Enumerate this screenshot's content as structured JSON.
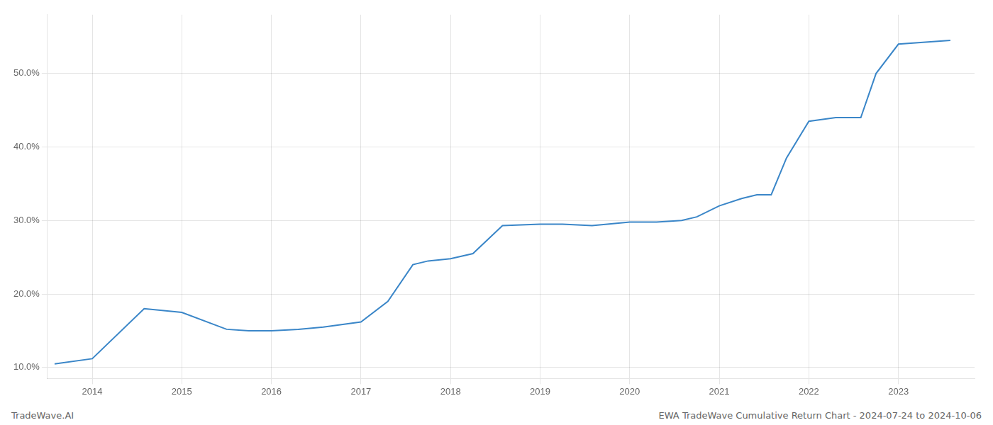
{
  "chart_data": {
    "type": "line",
    "x": [
      2013.58,
      2014.0,
      2014.58,
      2015.0,
      2015.5,
      2015.75,
      2016.0,
      2016.3,
      2016.58,
      2017.0,
      2017.3,
      2017.58,
      2017.75,
      2018.0,
      2018.25,
      2018.58,
      2019.0,
      2019.25,
      2019.58,
      2019.75,
      2020.0,
      2020.3,
      2020.58,
      2020.75,
      2021.0,
      2021.25,
      2021.42,
      2021.58,
      2021.75,
      2022.0,
      2022.3,
      2022.58,
      2022.75,
      2023.0,
      2023.58
    ],
    "values": [
      10.5,
      11.2,
      18.0,
      17.5,
      15.2,
      15.0,
      15.0,
      15.2,
      15.5,
      16.2,
      19.0,
      24.0,
      24.5,
      24.8,
      25.5,
      29.3,
      29.5,
      29.5,
      29.3,
      29.5,
      29.8,
      29.8,
      30.0,
      30.5,
      32.0,
      33.0,
      33.5,
      33.5,
      38.5,
      43.5,
      44.0,
      44.0,
      50.0,
      54.0,
      54.5
    ],
    "color": "#3a86c8",
    "xlim": [
      2013.5,
      2023.85
    ],
    "xticks": [
      2014,
      2015,
      2016,
      2017,
      2018,
      2019,
      2020,
      2021,
      2022,
      2023
    ],
    "ylim": [
      8.5,
      58.0
    ],
    "yticks": [
      {
        "value": 10.0,
        "label": "10.0%"
      },
      {
        "value": 20.0,
        "label": "20.0%"
      },
      {
        "value": 30.0,
        "label": "30.0%"
      },
      {
        "value": 40.0,
        "label": "40.0%"
      },
      {
        "value": 50.0,
        "label": "50.0%"
      }
    ],
    "grid": true,
    "annotations": [
      "TradeWave.AI",
      "EWA TradeWave Cumulative Return Chart - 2024-07-24 to 2024-10-06"
    ]
  }
}
